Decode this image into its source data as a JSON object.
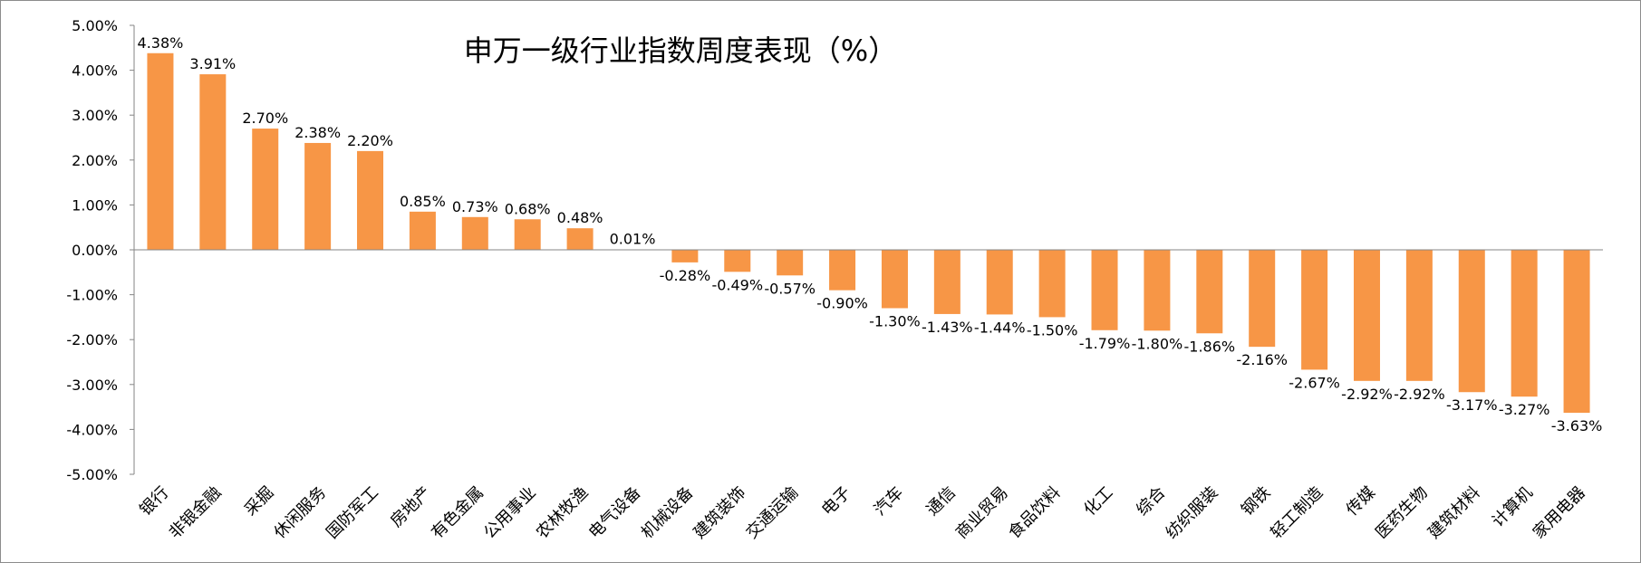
{
  "chart_data": {
    "type": "bar",
    "title": "申万一级行业指数周度表现（%）",
    "xlabel": "",
    "ylabel": "",
    "ylim": [
      -5,
      5
    ],
    "yticks": [
      5,
      4,
      3,
      2,
      1,
      0,
      -1,
      -2,
      -3,
      -4,
      -5
    ],
    "ytick_labels": [
      "5.00%",
      "4.00%",
      "3.00%",
      "2.00%",
      "1.00%",
      "0.00%",
      "-1.00%",
      "-2.00%",
      "-3.00%",
      "-4.00%",
      "-5.00%"
    ],
    "grid": false,
    "bar_color": "#F79646",
    "categories": [
      "银行",
      "非银金融",
      "采掘",
      "休闲服务",
      "国防军工",
      "房地产",
      "有色金属",
      "公用事业",
      "农林牧渔",
      "电气设备",
      "机械设备",
      "建筑装饰",
      "交通运输",
      "电子",
      "汽车",
      "通信",
      "商业贸易",
      "食品饮料",
      "化工",
      "综合",
      "纺织服装",
      "钢铁",
      "轻工制造",
      "传媒",
      "医药生物",
      "建筑材料",
      "计算机",
      "家用电器"
    ],
    "values": [
      4.38,
      3.91,
      2.7,
      2.38,
      2.2,
      0.85,
      0.73,
      0.68,
      0.48,
      0.01,
      -0.28,
      -0.49,
      -0.57,
      -0.9,
      -1.3,
      -1.43,
      -1.44,
      -1.5,
      -1.79,
      -1.8,
      -1.86,
      -2.16,
      -2.67,
      -2.92,
      -2.92,
      -3.17,
      -3.27,
      -3.63
    ],
    "data_labels": [
      "4.38%",
      "3.91%",
      "2.70%",
      "2.38%",
      "2.20%",
      "0.85%",
      "0.73%",
      "0.68%",
      "0.48%",
      "0.01%",
      "-0.28%",
      "-0.49%",
      "-0.57%",
      "-0.90%",
      "-1.30%",
      "-1.43%",
      "-1.44%",
      "-1.50%",
      "-1.79%",
      "-1.80%",
      "-1.86%",
      "-2.16%",
      "-2.67%",
      "-2.92%",
      "-2.92%",
      "-3.17%",
      "-3.27%",
      "-3.63%"
    ]
  }
}
